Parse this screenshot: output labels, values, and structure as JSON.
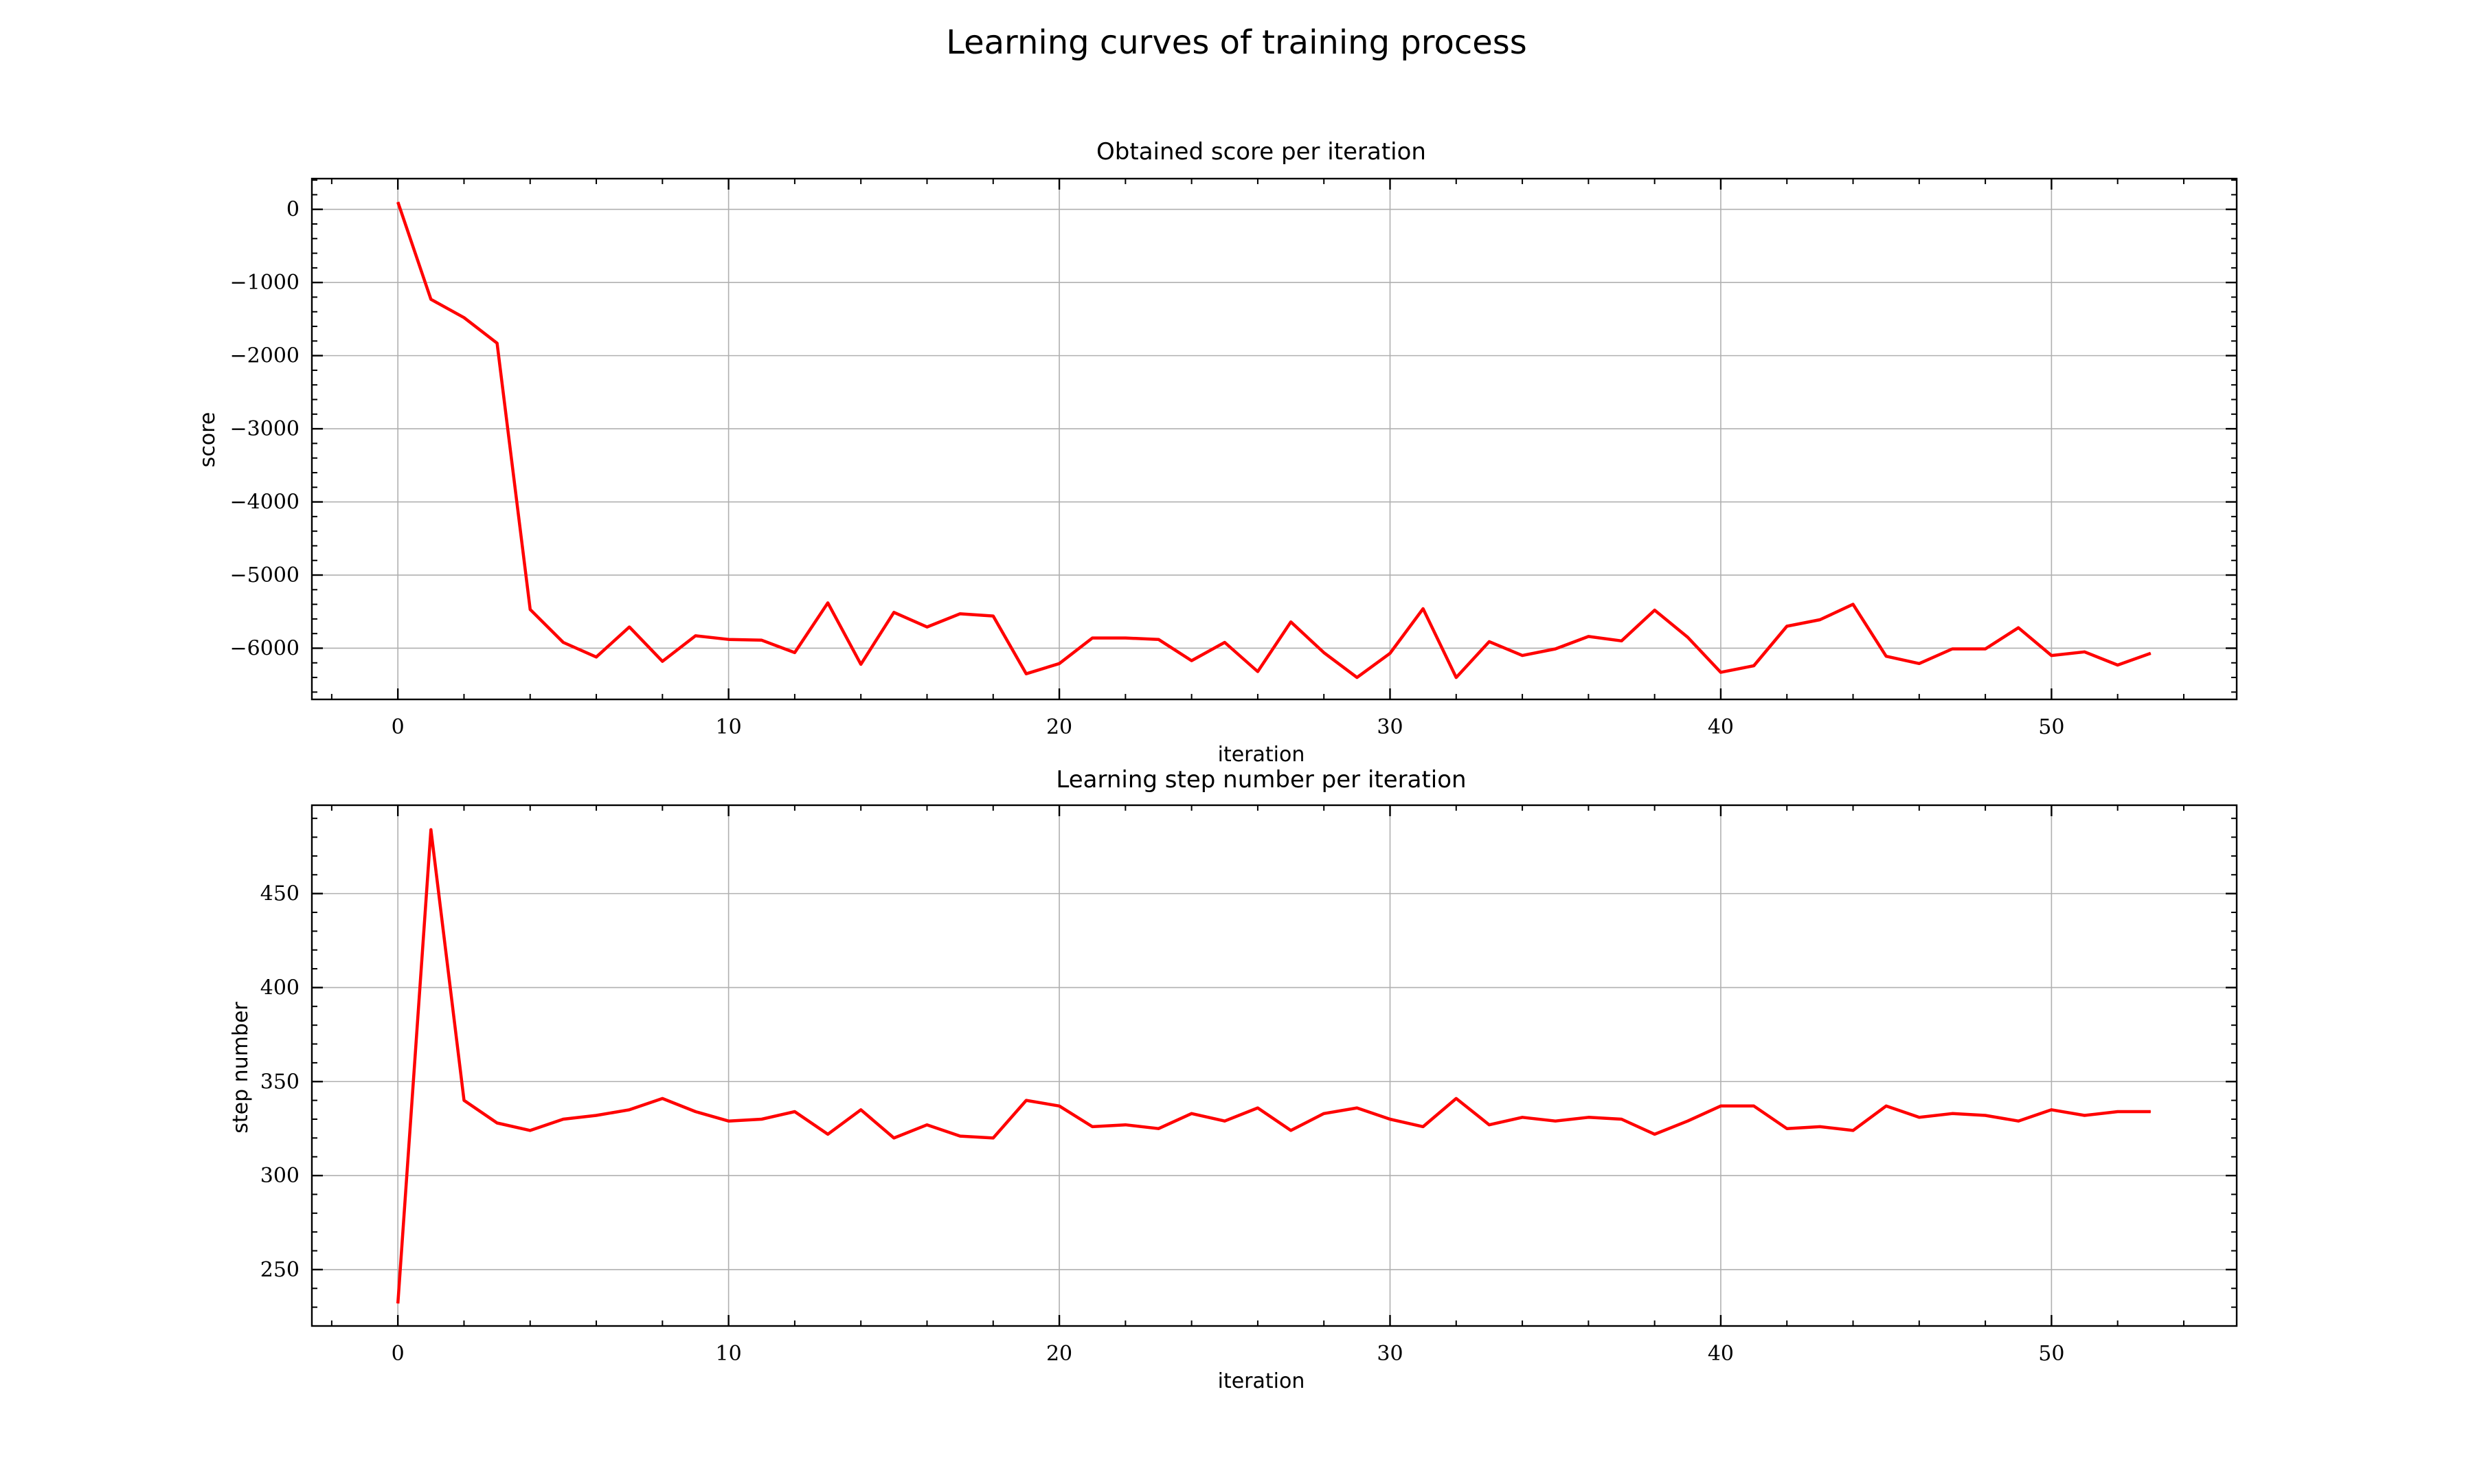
{
  "figure": {
    "suptitle": "Learning curves of training process"
  },
  "chart_data": [
    {
      "type": "line",
      "title": "Obtained score per iteration",
      "xlabel": "iteration",
      "ylabel": "score",
      "xlim": [
        -2.6,
        55.6
      ],
      "ylim": [
        -6700,
        420
      ],
      "xticks": [
        0,
        10,
        20,
        30,
        40,
        50
      ],
      "yticks": [
        0,
        -1000,
        -2000,
        -3000,
        -4000,
        -5000,
        -6000
      ],
      "xtick_labels": [
        "0",
        "10",
        "20",
        "30",
        "40",
        "50"
      ],
      "ytick_labels": [
        "0",
        "−1000",
        "−2000",
        "−3000",
        "−4000",
        "−5000",
        "−6000"
      ],
      "grid": true,
      "color": "#ff0000",
      "series": [
        {
          "x": [
            0,
            1,
            2,
            3,
            4,
            5,
            6,
            7,
            8,
            9,
            10,
            11,
            12,
            13,
            14,
            15,
            16,
            17,
            18,
            19,
            20,
            21,
            22,
            23,
            24,
            25,
            26,
            27,
            28,
            29,
            30,
            31,
            32,
            33,
            34,
            35,
            36,
            37,
            38,
            39,
            40,
            41,
            42,
            43,
            44,
            45,
            46,
            47,
            48,
            49,
            50,
            51,
            52,
            53
          ],
          "values": [
            100,
            -1230,
            -1480,
            -1830,
            -5470,
            -5920,
            -6120,
            -5710,
            -6180,
            -5830,
            -5880,
            -5890,
            -6060,
            -5380,
            -6220,
            -5510,
            -5710,
            -5530,
            -5560,
            -6350,
            -6210,
            -5860,
            -5860,
            -5880,
            -6170,
            -5920,
            -6320,
            -5640,
            -6060,
            -6400,
            -6070,
            -5460,
            -6400,
            -5910,
            -6100,
            -6010,
            -5840,
            -5900,
            -5480,
            -5850,
            -6330,
            -6240,
            -5700,
            -5610,
            -5400,
            -6110,
            -6210,
            -6010,
            -6010,
            -5720,
            -6100,
            -6050,
            -6230,
            -6070
          ]
        }
      ]
    },
    {
      "type": "line",
      "title": "Learning step number per iteration",
      "xlabel": "iteration",
      "ylabel": "step number",
      "xlim": [
        -2.6,
        55.6
      ],
      "ylim": [
        220,
        497
      ],
      "xticks": [
        0,
        10,
        20,
        30,
        40,
        50
      ],
      "yticks": [
        250,
        300,
        350,
        400,
        450
      ],
      "xtick_labels": [
        "0",
        "10",
        "20",
        "30",
        "40",
        "50"
      ],
      "ytick_labels": [
        "250",
        "300",
        "350",
        "400",
        "450"
      ],
      "grid": true,
      "color": "#ff0000",
      "series": [
        {
          "x": [
            0,
            1,
            2,
            3,
            4,
            5,
            6,
            7,
            8,
            9,
            10,
            11,
            12,
            13,
            14,
            15,
            16,
            17,
            18,
            19,
            20,
            21,
            22,
            23,
            24,
            25,
            26,
            27,
            28,
            29,
            30,
            31,
            32,
            33,
            34,
            35,
            36,
            37,
            38,
            39,
            40,
            41,
            42,
            43,
            44,
            45,
            46,
            47,
            48,
            49,
            50,
            51,
            52,
            53
          ],
          "values": [
            232,
            484,
            340,
            328,
            324,
            330,
            332,
            335,
            341,
            334,
            329,
            330,
            334,
            322,
            335,
            320,
            327,
            321,
            320,
            340,
            337,
            326,
            327,
            325,
            333,
            329,
            336,
            324,
            333,
            336,
            330,
            326,
            341,
            327,
            331,
            329,
            331,
            330,
            322,
            329,
            337,
            337,
            325,
            326,
            324,
            337,
            331,
            333,
            332,
            329,
            335,
            332,
            334,
            334
          ]
        }
      ]
    }
  ]
}
